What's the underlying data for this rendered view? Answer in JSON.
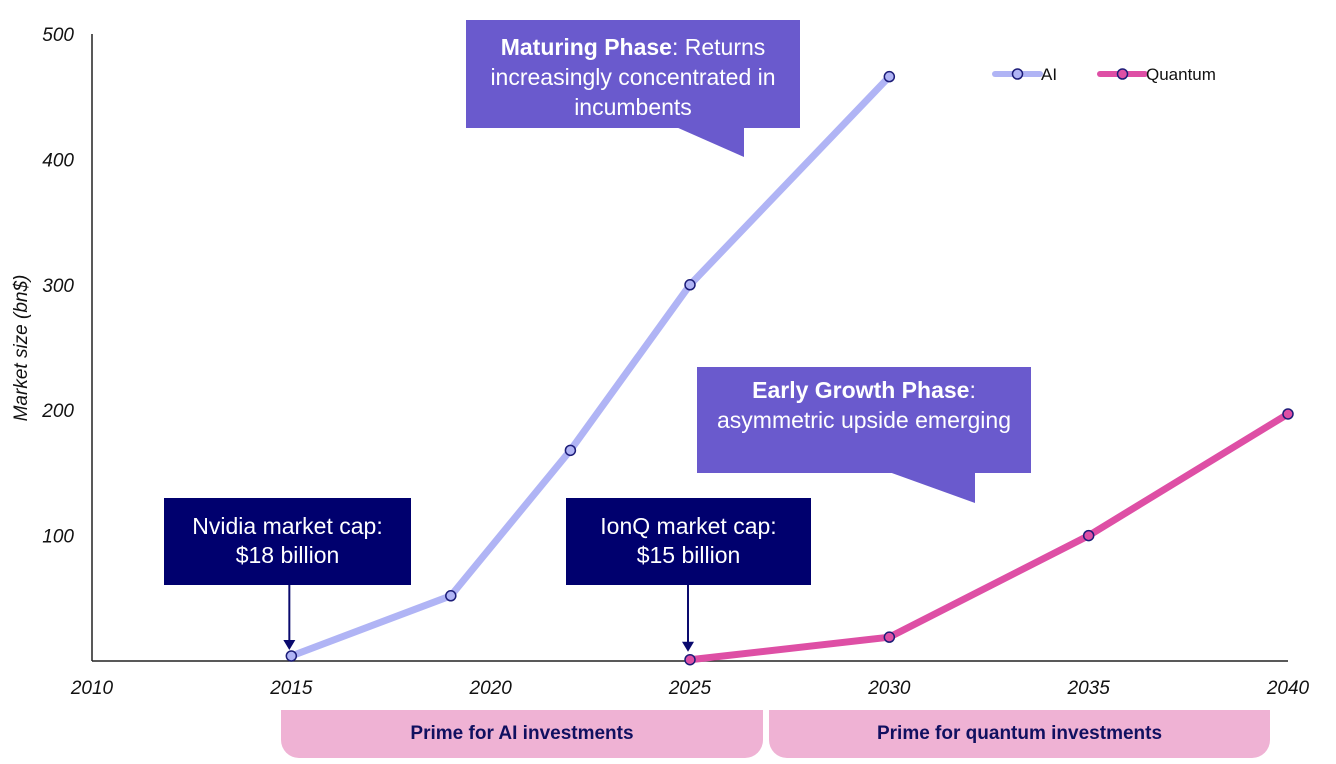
{
  "chart_data": {
    "type": "line",
    "title": "",
    "xlabel": "",
    "ylabel": "Market size (bn$)",
    "xlim": [
      2010,
      2040
    ],
    "ylim": [
      0,
      500
    ],
    "x_ticks": [
      "2010",
      "2015",
      "2020",
      "2025",
      "2030",
      "2035",
      "2040"
    ],
    "y_ticks": [
      "100",
      "200",
      "300",
      "400",
      "500"
    ],
    "legend_position": "top-right",
    "series": [
      {
        "name": "AI",
        "color": "#b0b4f5",
        "x": [
          2015,
          2019,
          2022,
          2025,
          2030
        ],
        "y": [
          4,
          52,
          168,
          300,
          466
        ]
      },
      {
        "name": "Quantum",
        "color": "#de4fa5",
        "x": [
          2025,
          2030,
          2035,
          2040
        ],
        "y": [
          1,
          19,
          100,
          197
        ]
      }
    ]
  },
  "callouts": {
    "maturing": {
      "bold": "Maturing Phase",
      "rest": ": Returns increasingly concentrated in incumbents",
      "color": "#6a5acd"
    },
    "early": {
      "bold": "Early Growth Phase",
      "rest": ": asymmetric upside emerging",
      "color": "#6a5acd"
    }
  },
  "notes": {
    "nvidia": {
      "line1": "Nvidia market cap:",
      "line2": "$18 billion"
    },
    "ionq": {
      "line1": "IonQ market cap:",
      "line2": "$15 billion"
    }
  },
  "bands": {
    "ai": "Prime for AI investments",
    "quantum": "Prime for quantum investments"
  }
}
